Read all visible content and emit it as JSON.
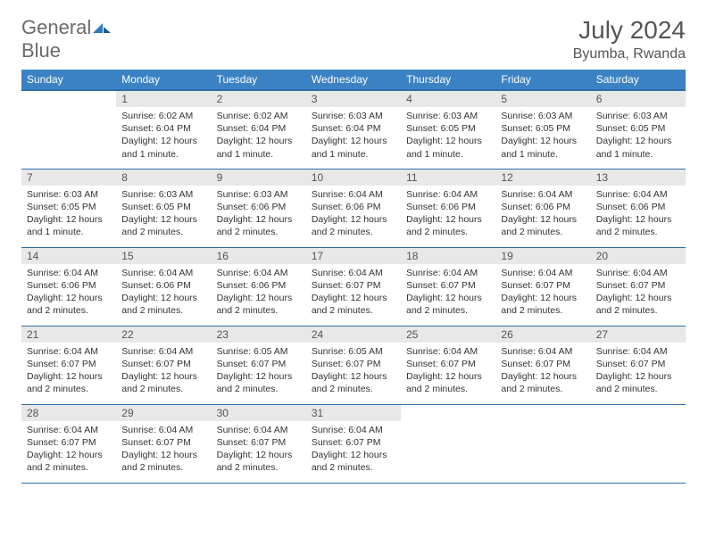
{
  "logo": {
    "word1": "General",
    "word2": "Blue"
  },
  "title": "July 2024",
  "location": "Byumba, Rwanda",
  "header_bg": "#3b82c4",
  "header_fg": "#ffffff",
  "daynum_bg": "#e8e8e8",
  "border_color": "#2f6da8",
  "text_color": "#333333",
  "columns": [
    "Sunday",
    "Monday",
    "Tuesday",
    "Wednesday",
    "Thursday",
    "Friday",
    "Saturday"
  ],
  "weeks": [
    [
      {
        "n": "",
        "sunrise": "",
        "sunset": "",
        "daylight": ""
      },
      {
        "n": "1",
        "sunrise": "6:02 AM",
        "sunset": "6:04 PM",
        "daylight": "12 hours and 1 minute."
      },
      {
        "n": "2",
        "sunrise": "6:02 AM",
        "sunset": "6:04 PM",
        "daylight": "12 hours and 1 minute."
      },
      {
        "n": "3",
        "sunrise": "6:03 AM",
        "sunset": "6:04 PM",
        "daylight": "12 hours and 1 minute."
      },
      {
        "n": "4",
        "sunrise": "6:03 AM",
        "sunset": "6:05 PM",
        "daylight": "12 hours and 1 minute."
      },
      {
        "n": "5",
        "sunrise": "6:03 AM",
        "sunset": "6:05 PM",
        "daylight": "12 hours and 1 minute."
      },
      {
        "n": "6",
        "sunrise": "6:03 AM",
        "sunset": "6:05 PM",
        "daylight": "12 hours and 1 minute."
      }
    ],
    [
      {
        "n": "7",
        "sunrise": "6:03 AM",
        "sunset": "6:05 PM",
        "daylight": "12 hours and 1 minute."
      },
      {
        "n": "8",
        "sunrise": "6:03 AM",
        "sunset": "6:05 PM",
        "daylight": "12 hours and 2 minutes."
      },
      {
        "n": "9",
        "sunrise": "6:03 AM",
        "sunset": "6:06 PM",
        "daylight": "12 hours and 2 minutes."
      },
      {
        "n": "10",
        "sunrise": "6:04 AM",
        "sunset": "6:06 PM",
        "daylight": "12 hours and 2 minutes."
      },
      {
        "n": "11",
        "sunrise": "6:04 AM",
        "sunset": "6:06 PM",
        "daylight": "12 hours and 2 minutes."
      },
      {
        "n": "12",
        "sunrise": "6:04 AM",
        "sunset": "6:06 PM",
        "daylight": "12 hours and 2 minutes."
      },
      {
        "n": "13",
        "sunrise": "6:04 AM",
        "sunset": "6:06 PM",
        "daylight": "12 hours and 2 minutes."
      }
    ],
    [
      {
        "n": "14",
        "sunrise": "6:04 AM",
        "sunset": "6:06 PM",
        "daylight": "12 hours and 2 minutes."
      },
      {
        "n": "15",
        "sunrise": "6:04 AM",
        "sunset": "6:06 PM",
        "daylight": "12 hours and 2 minutes."
      },
      {
        "n": "16",
        "sunrise": "6:04 AM",
        "sunset": "6:06 PM",
        "daylight": "12 hours and 2 minutes."
      },
      {
        "n": "17",
        "sunrise": "6:04 AM",
        "sunset": "6:07 PM",
        "daylight": "12 hours and 2 minutes."
      },
      {
        "n": "18",
        "sunrise": "6:04 AM",
        "sunset": "6:07 PM",
        "daylight": "12 hours and 2 minutes."
      },
      {
        "n": "19",
        "sunrise": "6:04 AM",
        "sunset": "6:07 PM",
        "daylight": "12 hours and 2 minutes."
      },
      {
        "n": "20",
        "sunrise": "6:04 AM",
        "sunset": "6:07 PM",
        "daylight": "12 hours and 2 minutes."
      }
    ],
    [
      {
        "n": "21",
        "sunrise": "6:04 AM",
        "sunset": "6:07 PM",
        "daylight": "12 hours and 2 minutes."
      },
      {
        "n": "22",
        "sunrise": "6:04 AM",
        "sunset": "6:07 PM",
        "daylight": "12 hours and 2 minutes."
      },
      {
        "n": "23",
        "sunrise": "6:05 AM",
        "sunset": "6:07 PM",
        "daylight": "12 hours and 2 minutes."
      },
      {
        "n": "24",
        "sunrise": "6:05 AM",
        "sunset": "6:07 PM",
        "daylight": "12 hours and 2 minutes."
      },
      {
        "n": "25",
        "sunrise": "6:04 AM",
        "sunset": "6:07 PM",
        "daylight": "12 hours and 2 minutes."
      },
      {
        "n": "26",
        "sunrise": "6:04 AM",
        "sunset": "6:07 PM",
        "daylight": "12 hours and 2 minutes."
      },
      {
        "n": "27",
        "sunrise": "6:04 AM",
        "sunset": "6:07 PM",
        "daylight": "12 hours and 2 minutes."
      }
    ],
    [
      {
        "n": "28",
        "sunrise": "6:04 AM",
        "sunset": "6:07 PM",
        "daylight": "12 hours and 2 minutes."
      },
      {
        "n": "29",
        "sunrise": "6:04 AM",
        "sunset": "6:07 PM",
        "daylight": "12 hours and 2 minutes."
      },
      {
        "n": "30",
        "sunrise": "6:04 AM",
        "sunset": "6:07 PM",
        "daylight": "12 hours and 2 minutes."
      },
      {
        "n": "31",
        "sunrise": "6:04 AM",
        "sunset": "6:07 PM",
        "daylight": "12 hours and 2 minutes."
      },
      {
        "n": "",
        "sunrise": "",
        "sunset": "",
        "daylight": ""
      },
      {
        "n": "",
        "sunrise": "",
        "sunset": "",
        "daylight": ""
      },
      {
        "n": "",
        "sunrise": "",
        "sunset": "",
        "daylight": ""
      }
    ]
  ],
  "labels": {
    "sunrise": "Sunrise:",
    "sunset": "Sunset:",
    "daylight": "Daylight:"
  }
}
